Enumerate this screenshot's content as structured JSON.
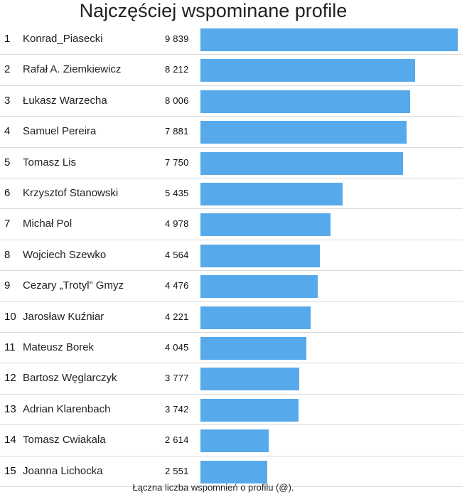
{
  "chart_data": {
    "type": "bar",
    "orientation": "horizontal",
    "title": "Najczęściej wspominane profile",
    "footer": "Łączna liczba wspomnień o profilu (@).",
    "bar_color": "#56aaec",
    "xlim": [
      0,
      9839
    ],
    "rows": [
      {
        "rank": "1",
        "name": "Konrad_Piasecki",
        "label": "9 839",
        "value": 9839
      },
      {
        "rank": "2",
        "name": "Rafał A. Ziemkiewicz",
        "label": "8 212",
        "value": 8212
      },
      {
        "rank": "3",
        "name": "Łukasz Warzecha",
        "label": "8 006",
        "value": 8006
      },
      {
        "rank": "4",
        "name": "Samuel Pereira",
        "label": "7 881",
        "value": 7881
      },
      {
        "rank": "5",
        "name": "Tomasz Lis",
        "label": "7 750",
        "value": 7750
      },
      {
        "rank": "6",
        "name": "Krzysztof Stanowski",
        "label": "5 435",
        "value": 5435
      },
      {
        "rank": "7",
        "name": "Michał Pol",
        "label": "4 978",
        "value": 4978
      },
      {
        "rank": "8",
        "name": "Wojciech Szewko",
        "label": "4 564",
        "value": 4564
      },
      {
        "rank": "9",
        "name": "Cezary „Trotyl” Gmyz",
        "label": "4 476",
        "value": 4476
      },
      {
        "rank": "10",
        "name": "Jarosław Kuźniar",
        "label": "4 221",
        "value": 4221
      },
      {
        "rank": "11",
        "name": "Mateusz Borek",
        "label": "4 045",
        "value": 4045
      },
      {
        "rank": "12",
        "name": "Bartosz Węglarczyk",
        "label": "3 777",
        "value": 3777
      },
      {
        "rank": "13",
        "name": "Adrian Klarenbach",
        "label": "3 742",
        "value": 3742
      },
      {
        "rank": "14",
        "name": "Tomasz Cwiakala",
        "label": "2 614",
        "value": 2614
      },
      {
        "rank": "15",
        "name": "Joanna Lichocka",
        "label": "2 551",
        "value": 2551
      }
    ]
  }
}
